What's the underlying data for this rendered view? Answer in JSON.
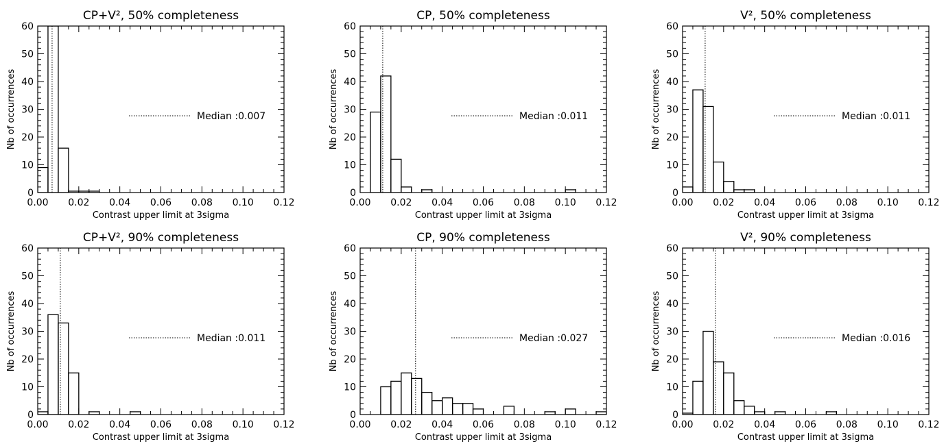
{
  "figure": {
    "note": ""
  },
  "chart_data": [
    {
      "type": "bar",
      "title": "CP+V², 50% completeness",
      "xlabel": "Contrast upper limit at 3sigma",
      "ylabel": "Nb of occurrences",
      "xlim": [
        0.0,
        0.12
      ],
      "ylim": [
        0,
        60
      ],
      "xticks": [
        "0.00",
        "0.02",
        "0.04",
        "0.06",
        "0.08",
        "0.10",
        "0.12"
      ],
      "yticks": [
        "0",
        "10",
        "20",
        "30",
        "40",
        "50",
        "60"
      ],
      "bin_edges": [
        0.0,
        0.005,
        0.01,
        0.015,
        0.02,
        0.025,
        0.03
      ],
      "counts": [
        9,
        60,
        16,
        0.5,
        0.5,
        0.5
      ],
      "median_value": 0.007,
      "legend": "Median :0.007"
    },
    {
      "type": "bar",
      "title": "CP, 50% completeness",
      "xlabel": "Contrast upper limit at 3sigma",
      "ylabel": "Nb of occurrences",
      "xlim": [
        0.0,
        0.12
      ],
      "ylim": [
        0,
        60
      ],
      "xticks": [
        "0.00",
        "0.02",
        "0.04",
        "0.06",
        "0.08",
        "0.10",
        "0.12"
      ],
      "yticks": [
        "0",
        "10",
        "20",
        "30",
        "40",
        "50",
        "60"
      ],
      "bin_edges": [
        0.005,
        0.01,
        0.015,
        0.02,
        0.025,
        0.03,
        0.035,
        0.04,
        0.045,
        0.05,
        0.055,
        0.06,
        0.065,
        0.07,
        0.075,
        0.08,
        0.085,
        0.09,
        0.095,
        0.1,
        0.105
      ],
      "counts": [
        29,
        42,
        12,
        2,
        0,
        1,
        0,
        0,
        0,
        0,
        0,
        0,
        0,
        0,
        0,
        0,
        0,
        0,
        0,
        1
      ],
      "median_value": 0.011,
      "legend": "Median :0.011"
    },
    {
      "type": "bar",
      "title": "V², 50% completeness",
      "xlabel": "Contrast upper limit at 3sigma",
      "ylabel": "Nb of occurrences",
      "xlim": [
        0.0,
        0.12
      ],
      "ylim": [
        0,
        60
      ],
      "xticks": [
        "0.00",
        "0.02",
        "0.04",
        "0.06",
        "0.08",
        "0.10",
        "0.12"
      ],
      "yticks": [
        "0",
        "10",
        "20",
        "30",
        "40",
        "50",
        "60"
      ],
      "bin_edges": [
        0.0,
        0.005,
        0.01,
        0.015,
        0.02,
        0.025,
        0.03,
        0.035
      ],
      "counts": [
        2,
        37,
        31,
        11,
        4,
        1,
        1
      ],
      "median_value": 0.011,
      "legend": "Median :0.011"
    },
    {
      "type": "bar",
      "title": "CP+V², 90% completeness",
      "xlabel": "Contrast upper limit at 3sigma",
      "ylabel": "Nb of occurrences",
      "xlim": [
        0.0,
        0.12
      ],
      "ylim": [
        0,
        60
      ],
      "xticks": [
        "0.00",
        "0.02",
        "0.04",
        "0.06",
        "0.08",
        "0.10",
        "0.12"
      ],
      "yticks": [
        "0",
        "10",
        "20",
        "30",
        "40",
        "50",
        "60"
      ],
      "bin_edges": [
        0.0,
        0.005,
        0.01,
        0.015,
        0.02,
        0.025,
        0.03,
        0.035,
        0.04,
        0.045,
        0.05
      ],
      "counts": [
        1,
        36,
        33,
        15,
        0,
        1,
        0,
        0,
        0,
        1
      ],
      "median_value": 0.011,
      "legend": "Median :0.011"
    },
    {
      "type": "bar",
      "title": "CP, 90% completeness",
      "xlabel": "Contrast upper limit at 3sigma",
      "ylabel": "Nb of occurrences",
      "xlim": [
        0.0,
        0.12
      ],
      "ylim": [
        0,
        60
      ],
      "xticks": [
        "0.00",
        "0.02",
        "0.04",
        "0.06",
        "0.08",
        "0.10",
        "0.12"
      ],
      "yticks": [
        "0",
        "10",
        "20",
        "30",
        "40",
        "50",
        "60"
      ],
      "bin_edges": [
        0.01,
        0.015,
        0.02,
        0.025,
        0.03,
        0.035,
        0.04,
        0.045,
        0.05,
        0.055,
        0.06,
        0.065,
        0.07,
        0.075,
        0.08,
        0.085,
        0.09,
        0.095,
        0.1,
        0.105,
        0.11,
        0.115,
        0.12
      ],
      "counts": [
        10,
        12,
        15,
        13,
        8,
        5,
        6,
        4,
        4,
        2,
        0,
        0,
        3,
        0,
        0,
        0,
        1,
        0,
        2,
        0,
        0,
        1
      ],
      "median_value": 0.027,
      "legend": "Median :0.027"
    },
    {
      "type": "bar",
      "title": "V², 90% completeness",
      "xlabel": "Contrast upper limit at 3sigma",
      "ylabel": "Nb of occurrences",
      "xlim": [
        0.0,
        0.12
      ],
      "ylim": [
        0,
        60
      ],
      "xticks": [
        "0.00",
        "0.02",
        "0.04",
        "0.06",
        "0.08",
        "0.10",
        "0.12"
      ],
      "yticks": [
        "0",
        "10",
        "20",
        "30",
        "40",
        "50",
        "60"
      ],
      "bin_edges": [
        0.0,
        0.005,
        0.01,
        0.015,
        0.02,
        0.025,
        0.03,
        0.035,
        0.04,
        0.045,
        0.05,
        0.055,
        0.06,
        0.065,
        0.07,
        0.075
      ],
      "counts": [
        0.5,
        12,
        30,
        19,
        15,
        5,
        3,
        1,
        0,
        1,
        0,
        0,
        0,
        0,
        1
      ],
      "median_value": 0.016,
      "legend": "Median :0.016"
    }
  ]
}
